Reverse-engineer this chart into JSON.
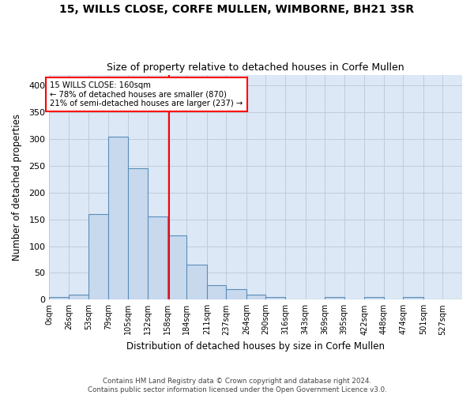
{
  "title_line1": "15, WILLS CLOSE, CORFE MULLEN, WIMBORNE, BH21 3SR",
  "title_line2": "Size of property relative to detached houses in Corfe Mullen",
  "xlabel": "Distribution of detached houses by size in Corfe Mullen",
  "ylabel": "Number of detached properties",
  "footnote1": "Contains HM Land Registry data © Crown copyright and database right 2024.",
  "footnote2": "Contains public sector information licensed under the Open Government Licence v3.0.",
  "annotation_line1": "15 WILLS CLOSE: 160sqm",
  "annotation_line2": "← 78% of detached houses are smaller (870)",
  "annotation_line3": "21% of semi-detached houses are larger (237) →",
  "vline_x": 160,
  "bar_color": "#c8d9ee",
  "bar_edge_color": "#5b8db8",
  "vline_color": "red",
  "annotation_box_color": "red",
  "grid_color": "#c0ccda",
  "background_color": "#dce8f5",
  "categories": [
    "0sqm",
    "26sqm",
    "53sqm",
    "79sqm",
    "105sqm",
    "132sqm",
    "158sqm",
    "184sqm",
    "211sqm",
    "237sqm",
    "264sqm",
    "290sqm",
    "316sqm",
    "343sqm",
    "369sqm",
    "395sqm",
    "422sqm",
    "448sqm",
    "474sqm",
    "501sqm",
    "527sqm"
  ],
  "bin_edges": [
    0,
    26,
    53,
    79,
    105,
    132,
    158,
    184,
    211,
    237,
    264,
    290,
    316,
    343,
    369,
    395,
    422,
    448,
    474,
    501,
    527,
    553
  ],
  "bar_heights": [
    5,
    10,
    160,
    305,
    245,
    155,
    120,
    65,
    27,
    20,
    10,
    5,
    1,
    0,
    5,
    0,
    5,
    0,
    5,
    0,
    1
  ],
  "ylim": [
    0,
    420
  ],
  "yticks": [
    0,
    50,
    100,
    150,
    200,
    250,
    300,
    350,
    400
  ]
}
